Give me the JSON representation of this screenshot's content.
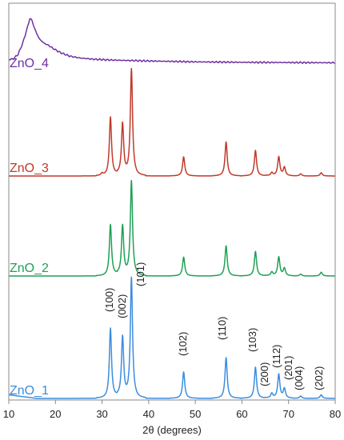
{
  "chart_data": {
    "type": "line",
    "title": "",
    "xlabel": "2θ (degrees)",
    "ylabel": "",
    "xlim": [
      10,
      80
    ],
    "xticks": [
      "10",
      "20",
      "30",
      "40",
      "50",
      "60",
      "70",
      "80"
    ],
    "grid": false,
    "series": [
      {
        "name": "ZnO_4",
        "color": "#7030a0",
        "points": [
          [
            10,
            0.08
          ],
          [
            11,
            0.1
          ],
          [
            12,
            0.2
          ],
          [
            13,
            0.45
          ],
          [
            14,
            0.8
          ],
          [
            14.5,
            1.0
          ],
          [
            15,
            0.95
          ],
          [
            15.5,
            0.78
          ],
          [
            16.5,
            0.55
          ],
          [
            17.5,
            0.45
          ],
          [
            18.5,
            0.4
          ],
          [
            19.5,
            0.33
          ],
          [
            21,
            0.24
          ],
          [
            23,
            0.16
          ],
          [
            25,
            0.12
          ],
          [
            28,
            0.09
          ],
          [
            32,
            0.07
          ],
          [
            40,
            0.05
          ],
          [
            50,
            0.03
          ],
          [
            60,
            0.02
          ],
          [
            70,
            0.015
          ],
          [
            80,
            0.01
          ]
        ]
      },
      {
        "name": "ZnO_3",
        "color": "#c0392b",
        "points": [
          [
            10,
            0.0
          ],
          [
            29.5,
            0.0
          ],
          [
            30,
            0.02
          ],
          [
            31.8,
            0.55
          ],
          [
            34.4,
            0.48
          ],
          [
            36.3,
            1.0
          ],
          [
            47.5,
            0.18
          ],
          [
            56.6,
            0.32
          ],
          [
            62.9,
            0.24
          ],
          [
            66.4,
            0.03
          ],
          [
            67.9,
            0.18
          ],
          [
            69.1,
            0.08
          ],
          [
            72.6,
            0.02
          ],
          [
            77.0,
            0.03
          ],
          [
            80,
            0.0
          ]
        ]
      },
      {
        "name": "ZnO_2",
        "color": "#1fa055",
        "points": [
          [
            10,
            0.0
          ],
          [
            30,
            0.0
          ],
          [
            31.8,
            0.54
          ],
          [
            34.4,
            0.52
          ],
          [
            36.3,
            1.0
          ],
          [
            47.5,
            0.2
          ],
          [
            56.6,
            0.32
          ],
          [
            62.9,
            0.26
          ],
          [
            66.4,
            0.04
          ],
          [
            67.9,
            0.2
          ],
          [
            69.1,
            0.08
          ],
          [
            72.6,
            0.02
          ],
          [
            77.0,
            0.04
          ],
          [
            80,
            0.0
          ]
        ]
      },
      {
        "name": "ZnO_1",
        "color": "#3c8dde",
        "points": [
          [
            10,
            0.03
          ],
          [
            30,
            0.0
          ],
          [
            31.8,
            0.58
          ],
          [
            34.4,
            0.5
          ],
          [
            36.3,
            1.0
          ],
          [
            47.5,
            0.22
          ],
          [
            56.6,
            0.34
          ],
          [
            62.9,
            0.26
          ],
          [
            66.4,
            0.04
          ],
          [
            67.9,
            0.2
          ],
          [
            69.1,
            0.08
          ],
          [
            72.6,
            0.02
          ],
          [
            77.0,
            0.03
          ],
          [
            80,
            0.0
          ]
        ]
      }
    ],
    "annotations": [
      {
        "text": "(100)",
        "x": 31.8
      },
      {
        "text": "(002)",
        "x": 34.4
      },
      {
        "text": "(101)",
        "x": 36.3
      },
      {
        "text": "(102)",
        "x": 47.5
      },
      {
        "text": "(110)",
        "x": 56.6
      },
      {
        "text": "(103)",
        "x": 62.9
      },
      {
        "text": "(200)",
        "x": 66.4
      },
      {
        "text": "(112)",
        "x": 67.9
      },
      {
        "text": "(201)",
        "x": 69.1
      },
      {
        "text": "(004)",
        "x": 72.6
      },
      {
        "text": "(202)",
        "x": 77.0
      }
    ]
  }
}
